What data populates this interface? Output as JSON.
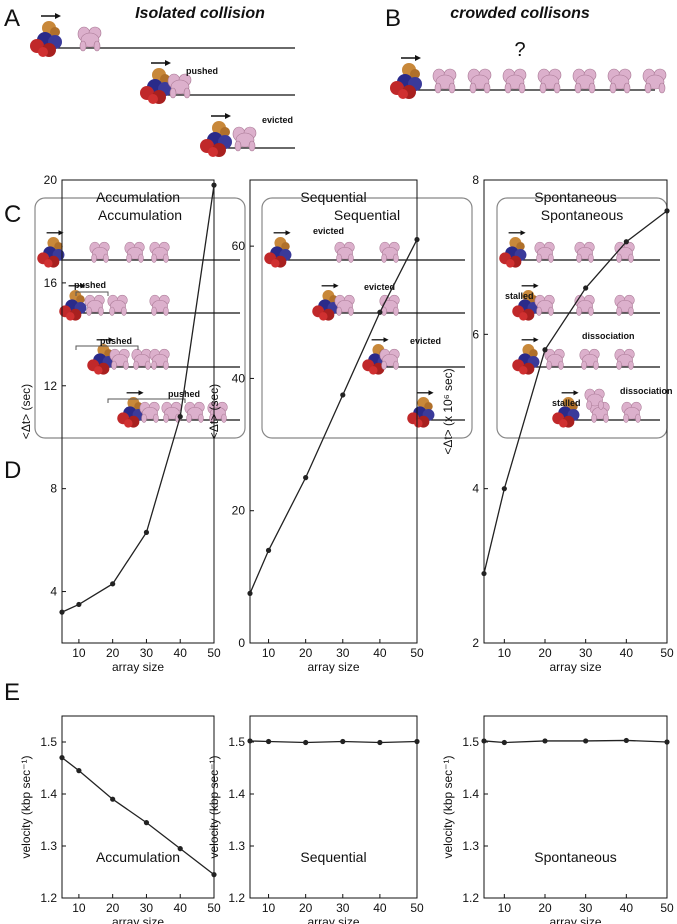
{
  "panels": {
    "A": {
      "letter": "A",
      "title": "Isolated collision",
      "labels": [
        "pushed",
        "evicted"
      ]
    },
    "B": {
      "letter": "B",
      "title": "crowded collisons",
      "label": "?"
    },
    "C": {
      "letter": "C",
      "boxes": [
        {
          "title": "Accumulation",
          "labels": [
            "pushed",
            "pushed",
            "pushed"
          ]
        },
        {
          "title": "Sequential",
          "labels": [
            "evicted",
            "evicted",
            "evicted"
          ]
        },
        {
          "title": "Spontaneous",
          "labels": [
            "stalled",
            "dissociation",
            "stalled",
            "dissociation"
          ]
        }
      ]
    },
    "D": {
      "letter": "D"
    },
    "E": {
      "letter": "E"
    }
  },
  "chart_data": [
    {
      "type": "line",
      "annotation": "Accumulation",
      "xlabel": "array size",
      "ylabel": "<Δt> (sec)",
      "x": [
        5,
        10,
        20,
        30,
        40,
        50
      ],
      "values": [
        3.2,
        3.5,
        4.3,
        6.3,
        10.8,
        19.8
      ],
      "xlim": [
        5,
        50
      ],
      "xticks": [
        10,
        20,
        30,
        40,
        50
      ],
      "ylim": [
        2,
        20
      ],
      "yticks": [
        4,
        8,
        12,
        16,
        20
      ],
      "color": "#222222"
    },
    {
      "type": "line",
      "annotation": "Sequential",
      "xlabel": "array size",
      "ylabel": "<Δt> (sec)",
      "x": [
        5,
        10,
        20,
        30,
        40,
        50
      ],
      "values": [
        7.5,
        14,
        25,
        37.5,
        50,
        61
      ],
      "xlim": [
        5,
        50
      ],
      "xticks": [
        10,
        20,
        30,
        40,
        50
      ],
      "ylim": [
        0,
        70
      ],
      "yticks": [
        0,
        20,
        40,
        60
      ],
      "color": "#222222"
    },
    {
      "type": "line",
      "annotation": "Spontaneous",
      "xlabel": "array size",
      "ylabel": "<Δt> (x 10⁶ sec)",
      "x": [
        5,
        10,
        20,
        30,
        40,
        50
      ],
      "values": [
        2.9,
        4.0,
        5.8,
        6.6,
        7.2,
        7.6
      ],
      "xlim": [
        5,
        50
      ],
      "xticks": [
        10,
        20,
        30,
        40,
        50
      ],
      "ylim": [
        2,
        8
      ],
      "yticks": [
        2,
        4,
        6,
        8
      ],
      "color": "#222222"
    },
    {
      "type": "line",
      "annotation": "Accumulation",
      "xlabel": "array size",
      "ylabel": "velocity (kbp sec⁻¹)",
      "x": [
        5,
        10,
        20,
        30,
        40,
        50
      ],
      "values": [
        1.47,
        1.445,
        1.39,
        1.345,
        1.295,
        1.245
      ],
      "xlim": [
        5,
        50
      ],
      "xticks": [
        10,
        20,
        30,
        40,
        50
      ],
      "ylim": [
        1.2,
        1.55
      ],
      "yticks": [
        1.2,
        1.3,
        1.4,
        1.5
      ],
      "color": "#222222"
    },
    {
      "type": "line",
      "annotation": "Sequential",
      "xlabel": "array size",
      "ylabel": "velocity (kbp sec⁻¹)",
      "x": [
        5,
        10,
        20,
        30,
        40,
        50
      ],
      "values": [
        1.502,
        1.501,
        1.499,
        1.501,
        1.499,
        1.501
      ],
      "xlim": [
        5,
        50
      ],
      "xticks": [
        10,
        20,
        30,
        40,
        50
      ],
      "ylim": [
        1.2,
        1.55
      ],
      "yticks": [
        1.2,
        1.3,
        1.4,
        1.5
      ],
      "color": "#222222"
    },
    {
      "type": "line",
      "annotation": "Spontaneous",
      "xlabel": "array size",
      "ylabel": "velocity (kbp sec⁻¹)",
      "x": [
        5,
        10,
        20,
        30,
        40,
        50
      ],
      "values": [
        1.502,
        1.499,
        1.502,
        1.502,
        1.503,
        1.5
      ],
      "xlim": [
        5,
        50
      ],
      "xticks": [
        10,
        20,
        30,
        40,
        50
      ],
      "ylim": [
        1.2,
        1.55
      ],
      "yticks": [
        1.2,
        1.3,
        1.4,
        1.5
      ],
      "color": "#222222"
    }
  ]
}
